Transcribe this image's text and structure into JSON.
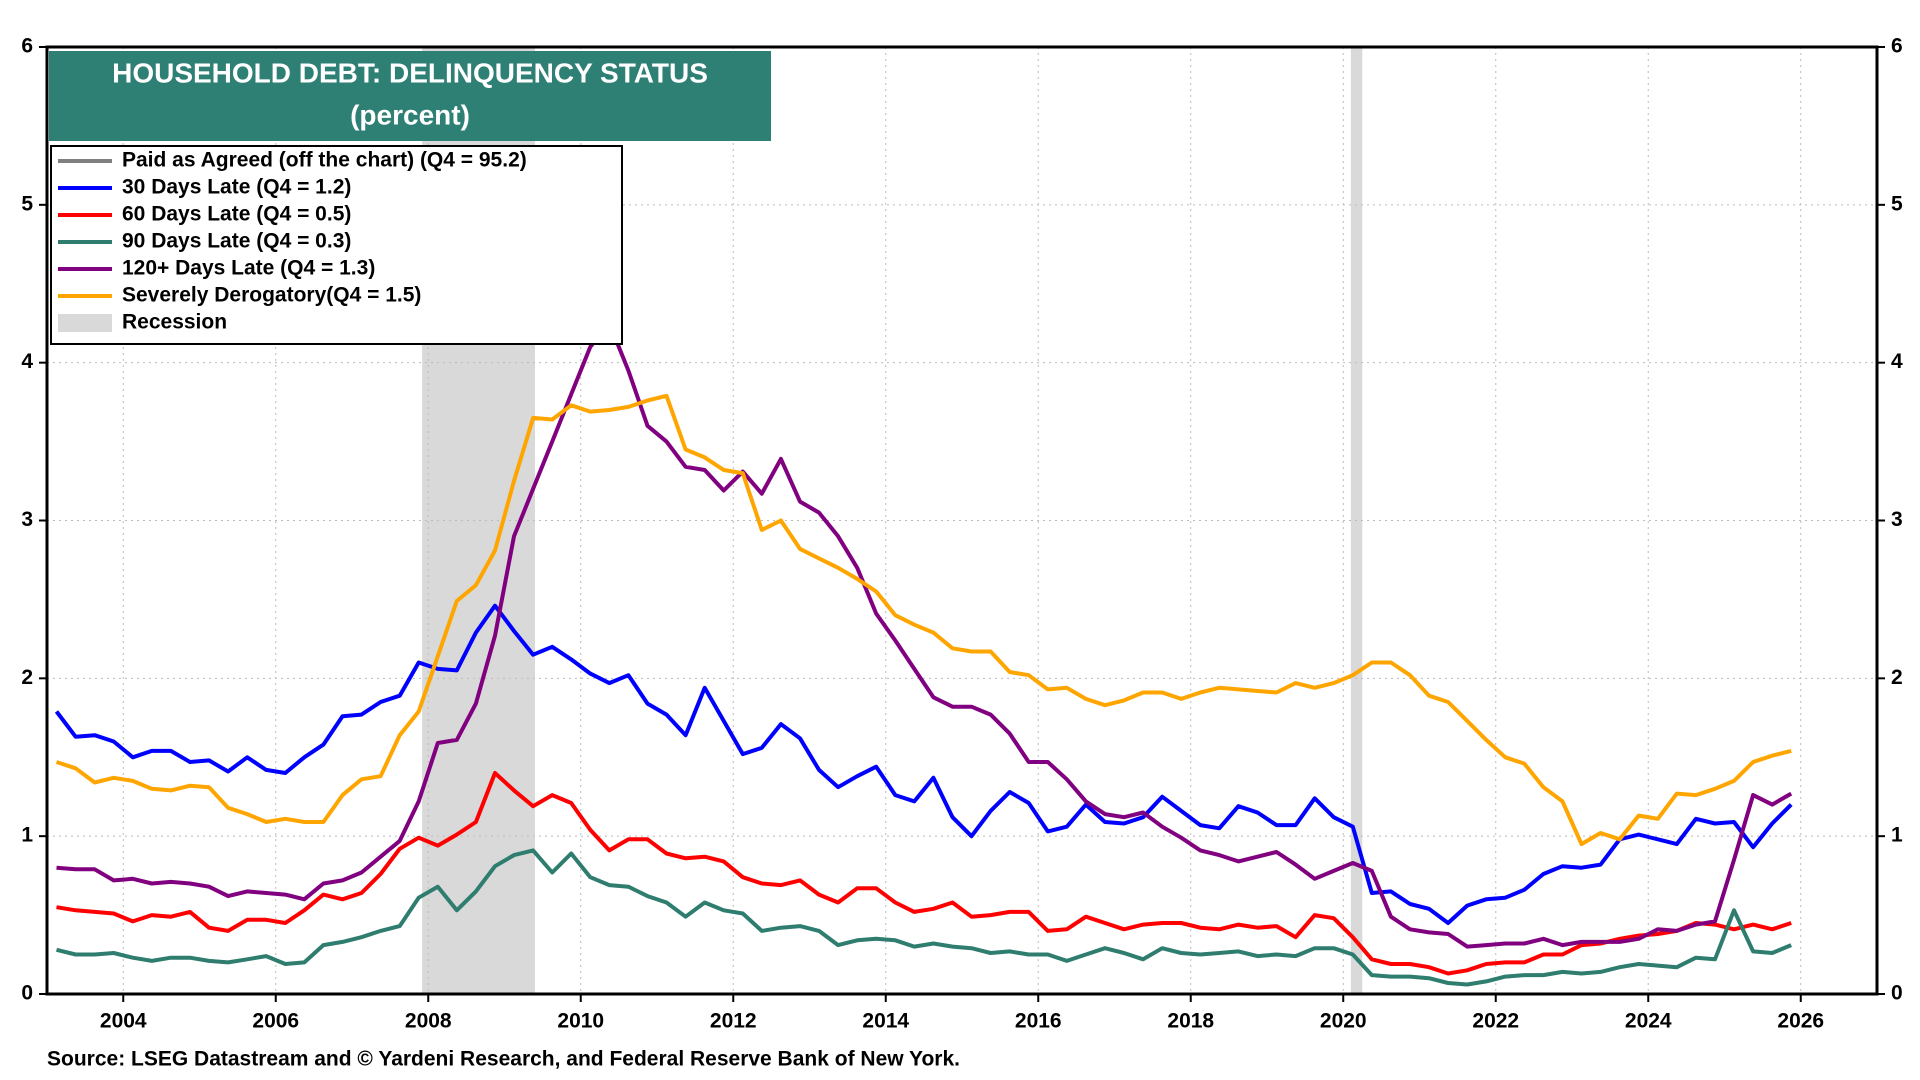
{
  "chart_data": {
    "type": "line",
    "title": "HOUSEHOLD DEBT: DELINQUENCY STATUS",
    "subtitle": "(percent)",
    "source": "Source: LSEG Datastream and © Yardeni Research, and Federal Reserve Bank of New York.",
    "x_start": 2003.125,
    "x_step": 0.25,
    "xlim": [
      2003,
      2027
    ],
    "xticks": [
      2004,
      2006,
      2008,
      2010,
      2012,
      2014,
      2016,
      2018,
      2020,
      2022,
      2024,
      2026
    ],
    "ylim": [
      0,
      6
    ],
    "yticks": [
      0,
      1,
      2,
      3,
      4,
      5,
      6
    ],
    "y2lim": [
      0,
      6
    ],
    "y2ticks": [
      0,
      1,
      2,
      3,
      4,
      5,
      6
    ],
    "grid": true,
    "legend": "upper left",
    "off_chart_series": {
      "name": "Paid as Agreed (off the chart) (Q4 = 95.2)",
      "color": "#808080"
    },
    "recessions": {
      "name": "Recession",
      "color": "#d9d9d9",
      "spans": [
        [
          2007.92,
          2009.4
        ],
        [
          2020.1,
          2020.25
        ]
      ]
    },
    "series": [
      {
        "name": "30 Days Late (Q4 = 1.2)",
        "color": "#0000ff",
        "values": [
          1.79,
          1.63,
          1.64,
          1.6,
          1.5,
          1.54,
          1.54,
          1.47,
          1.48,
          1.41,
          1.5,
          1.42,
          1.4,
          1.5,
          1.58,
          1.76,
          1.77,
          1.85,
          1.89,
          2.1,
          2.06,
          2.05,
          2.29,
          2.46,
          2.3,
          2.15,
          2.2,
          2.12,
          2.03,
          1.97,
          2.02,
          1.84,
          1.77,
          1.64,
          1.94,
          1.73,
          1.52,
          1.56,
          1.71,
          1.62,
          1.42,
          1.31,
          1.38,
          1.44,
          1.26,
          1.22,
          1.37,
          1.12,
          1.0,
          1.16,
          1.28,
          1.21,
          1.03,
          1.06,
          1.2,
          1.09,
          1.08,
          1.12,
          1.25,
          1.16,
          1.07,
          1.05,
          1.19,
          1.15,
          1.07,
          1.07,
          1.24,
          1.12,
          1.06,
          0.64,
          0.65,
          0.57,
          0.54,
          0.45,
          0.56,
          0.6,
          0.61,
          0.66,
          0.76,
          0.81,
          0.8,
          0.82,
          0.98,
          1.01,
          0.98,
          0.95,
          1.11,
          1.08,
          1.09,
          0.93,
          1.08,
          1.2
        ]
      },
      {
        "name": "60 Days Late  (Q4 = 0.5)",
        "color": "#ff0000",
        "values": [
          0.55,
          0.53,
          0.52,
          0.51,
          0.46,
          0.5,
          0.49,
          0.52,
          0.42,
          0.4,
          0.47,
          0.47,
          0.45,
          0.53,
          0.63,
          0.6,
          0.64,
          0.76,
          0.92,
          0.99,
          0.94,
          1.01,
          1.09,
          1.4,
          1.29,
          1.19,
          1.26,
          1.21,
          1.04,
          0.91,
          0.98,
          0.98,
          0.89,
          0.86,
          0.87,
          0.84,
          0.74,
          0.7,
          0.69,
          0.72,
          0.63,
          0.58,
          0.67,
          0.67,
          0.58,
          0.52,
          0.54,
          0.58,
          0.49,
          0.5,
          0.52,
          0.52,
          0.4,
          0.41,
          0.49,
          0.45,
          0.41,
          0.44,
          0.45,
          0.45,
          0.42,
          0.41,
          0.44,
          0.42,
          0.43,
          0.36,
          0.5,
          0.48,
          0.36,
          0.22,
          0.19,
          0.19,
          0.17,
          0.13,
          0.15,
          0.19,
          0.2,
          0.2,
          0.25,
          0.25,
          0.31,
          0.32,
          0.35,
          0.37,
          0.38,
          0.4,
          0.45,
          0.44,
          0.41,
          0.44,
          0.41,
          0.45
        ]
      },
      {
        "name": "90 Days Late (Q4 = 0.3)",
        "color": "#2e7d6e",
        "values": [
          0.28,
          0.25,
          0.25,
          0.26,
          0.23,
          0.21,
          0.23,
          0.23,
          0.21,
          0.2,
          0.22,
          0.24,
          0.19,
          0.2,
          0.31,
          0.33,
          0.36,
          0.4,
          0.43,
          0.61,
          0.68,
          0.53,
          0.65,
          0.81,
          0.88,
          0.91,
          0.77,
          0.89,
          0.74,
          0.69,
          0.68,
          0.62,
          0.58,
          0.49,
          0.58,
          0.53,
          0.51,
          0.4,
          0.42,
          0.43,
          0.4,
          0.31,
          0.34,
          0.35,
          0.34,
          0.3,
          0.32,
          0.3,
          0.29,
          0.26,
          0.27,
          0.25,
          0.25,
          0.21,
          0.25,
          0.29,
          0.26,
          0.22,
          0.29,
          0.26,
          0.25,
          0.26,
          0.27,
          0.24,
          0.25,
          0.24,
          0.29,
          0.29,
          0.25,
          0.12,
          0.11,
          0.11,
          0.1,
          0.07,
          0.06,
          0.08,
          0.11,
          0.12,
          0.12,
          0.14,
          0.13,
          0.14,
          0.17,
          0.19,
          0.18,
          0.17,
          0.23,
          0.22,
          0.53,
          0.27,
          0.26,
          0.31
        ]
      },
      {
        "name": "120+ Days Late (Q4 = 1.3)",
        "color": "#800080",
        "values": [
          0.8,
          0.79,
          0.79,
          0.72,
          0.73,
          0.7,
          0.71,
          0.7,
          0.68,
          0.62,
          0.65,
          0.64,
          0.63,
          0.6,
          0.7,
          0.72,
          0.77,
          0.87,
          0.97,
          1.22,
          1.59,
          1.61,
          1.84,
          2.27,
          2.9,
          3.2,
          3.5,
          3.8,
          4.1,
          4.25,
          3.95,
          3.6,
          3.5,
          3.34,
          3.32,
          3.19,
          3.31,
          3.17,
          3.39,
          3.12,
          3.05,
          2.9,
          2.7,
          2.41,
          2.24,
          2.06,
          1.88,
          1.82,
          1.82,
          1.77,
          1.65,
          1.47,
          1.47,
          1.36,
          1.22,
          1.14,
          1.12,
          1.15,
          1.06,
          0.99,
          0.91,
          0.88,
          0.84,
          0.87,
          0.9,
          0.82,
          0.73,
          0.78,
          0.83,
          0.78,
          0.49,
          0.41,
          0.39,
          0.38,
          0.3,
          0.31,
          0.32,
          0.32,
          0.35,
          0.31,
          0.33,
          0.33,
          0.33,
          0.35,
          0.41,
          0.4,
          0.44,
          0.46,
          0.85,
          1.26,
          1.2,
          1.27
        ]
      },
      {
        "name": "Severely Derogatory(Q4 = 1.5)",
        "color": "#ffa500",
        "values": [
          1.47,
          1.43,
          1.34,
          1.37,
          1.35,
          1.3,
          1.29,
          1.32,
          1.31,
          1.18,
          1.14,
          1.09,
          1.11,
          1.09,
          1.09,
          1.26,
          1.36,
          1.38,
          1.64,
          1.79,
          2.14,
          2.49,
          2.59,
          2.81,
          3.25,
          3.65,
          3.64,
          3.73,
          3.69,
          3.7,
          3.72,
          3.76,
          3.79,
          3.45,
          3.4,
          3.32,
          3.3,
          2.94,
          3.0,
          2.82,
          2.76,
          2.7,
          2.63,
          2.55,
          2.4,
          2.34,
          2.29,
          2.19,
          2.17,
          2.17,
          2.04,
          2.02,
          1.93,
          1.94,
          1.87,
          1.83,
          1.86,
          1.91,
          1.91,
          1.87,
          1.91,
          1.94,
          1.93,
          1.92,
          1.91,
          1.97,
          1.94,
          1.97,
          2.02,
          2.1,
          2.1,
          2.02,
          1.89,
          1.85,
          1.73,
          1.61,
          1.5,
          1.46,
          1.31,
          1.22,
          0.95,
          1.02,
          0.98,
          1.13,
          1.11,
          1.27,
          1.26,
          1.3,
          1.35,
          1.47,
          1.51,
          1.54
        ]
      }
    ]
  }
}
